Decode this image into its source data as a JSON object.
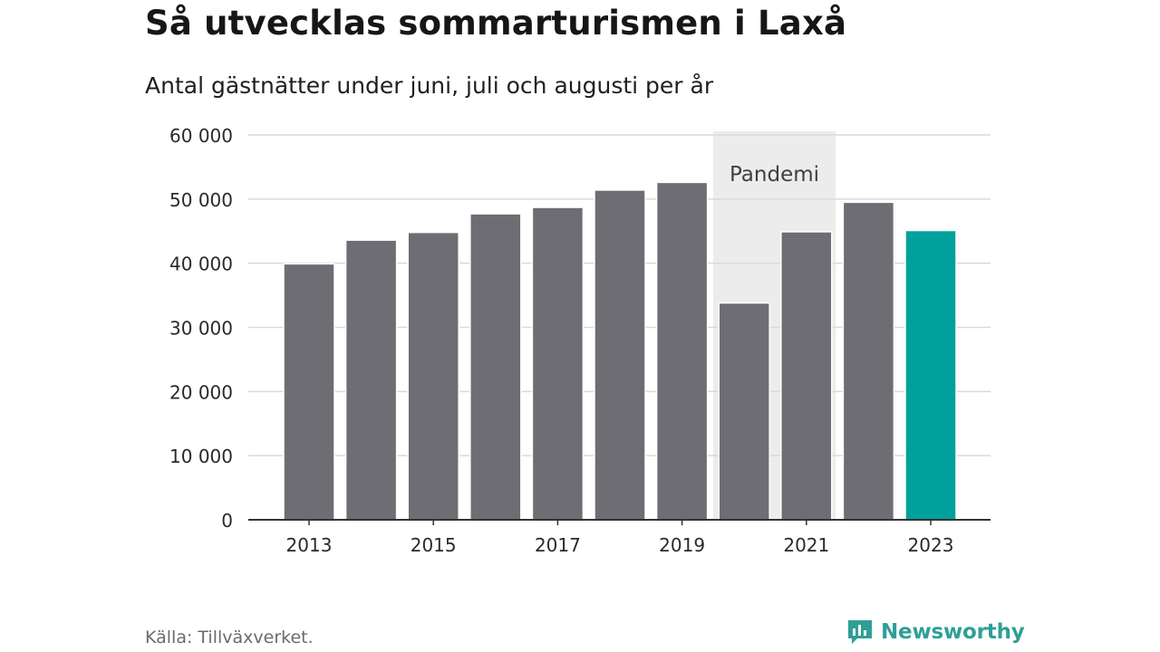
{
  "header": {
    "title": "Så utvecklas sommarturismen i Laxå",
    "subtitle": "Antal gästnätter under juni, juli och augusti per år"
  },
  "footer": {
    "source": "Källa: Tillväxverket.",
    "brand": "Newsworthy"
  },
  "colors": {
    "bar": "#6e6d73",
    "highlight": "#00a19a",
    "shade": "#ececec",
    "grid": "#d9d9d9",
    "axis": "#333333",
    "tick_text": "#2a2a2a",
    "annotation_text": "#3e3e46",
    "brand": "#2f9f96"
  },
  "chart_data": {
    "type": "bar",
    "categories": [
      "2013",
      "2014",
      "2015",
      "2016",
      "2017",
      "2018",
      "2019",
      "2020",
      "2021",
      "2022",
      "2023"
    ],
    "values": [
      39900,
      43600,
      44800,
      47700,
      48700,
      51400,
      52600,
      33800,
      44900,
      49500,
      45100
    ],
    "highlight_index": 10,
    "xlabel": "",
    "ylabel": "",
    "ylim": [
      0,
      60000
    ],
    "yticks": [
      0,
      10000,
      20000,
      30000,
      40000,
      50000,
      60000
    ],
    "ytick_labels": [
      "0",
      "10 000",
      "20 000",
      "30 000",
      "40 000",
      "50 000",
      "60 000"
    ],
    "xtick_labels": [
      "2013",
      "2015",
      "2017",
      "2019",
      "2021",
      "2023"
    ],
    "grid": true,
    "annotation": {
      "label": "Pandemi",
      "from": "2020",
      "to": "2021"
    }
  }
}
